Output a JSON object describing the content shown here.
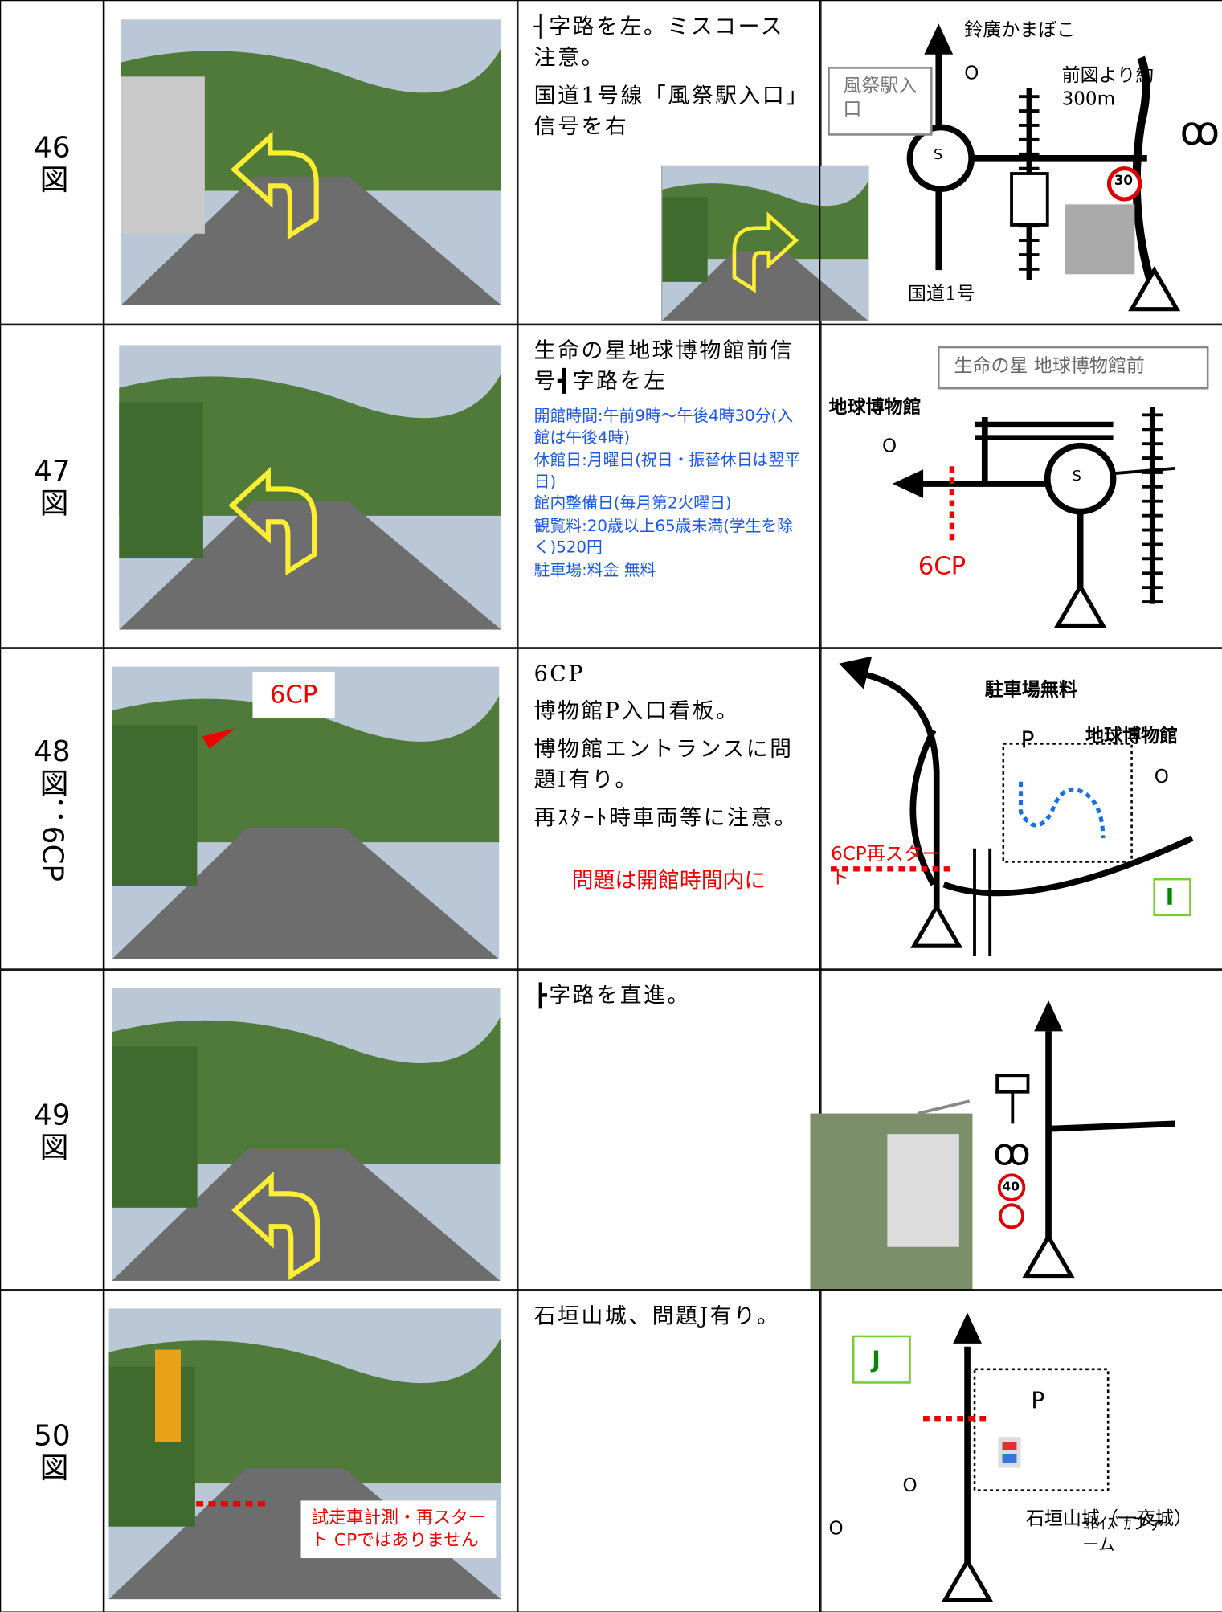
{
  "rows": [
    {
      "number": "46",
      "label": "図",
      "text": [
        "┤字路を左。ミスコース注意。",
        "国道1号線「風祭駅入口」信号を右"
      ],
      "map": [
        "鈴廣かまぼこ",
        "O",
        "風祭駅入口",
        "前図より約300m",
        "S",
        "30",
        "国道1号"
      ]
    },
    {
      "number": "47",
      "label": "図",
      "text": [
        "生命の星地球博物館前信号┫字路を左"
      ],
      "info": [
        "開館時間:午前9時～午後4時30分(入館は午後4時)",
        "休館日:月曜日(祝日・振替休日は翌平日)",
        "館内整備日(毎月第2火曜日)",
        "観覧料:20歳以上65歳未満(学生を除く)520円",
        "駐車場:料金 無料"
      ],
      "map": [
        "生命の星 地球博物館前",
        "地球博物館",
        "O",
        "S",
        "6CP"
      ]
    },
    {
      "number": "48",
      "label": "図：6CP",
      "photo_label": "6CP",
      "text": [
        "6CP",
        "博物館P入口看板。",
        "博物館エントランスに問題I有り。",
        "再ｽﾀｰﾄ時車両等に注意。"
      ],
      "note": "問題は開館時間内に",
      "map": [
        "駐車場無料",
        "P",
        "地球博物館",
        "O",
        "6CP再スタート",
        "I"
      ]
    },
    {
      "number": "49",
      "label": "図",
      "text": [
        "┣字路を直進。"
      ],
      "map": [
        "40"
      ]
    },
    {
      "number": "50",
      "label": "図",
      "photo_label": "試走車計測・再スタート CPではありません",
      "text": [
        "石垣山城、問題J有り。"
      ],
      "map": [
        "J",
        "P",
        "O",
        "石垣山城（一夜城）",
        "O",
        "ﾖﾛｲｽﾞｶファーム"
      ]
    }
  ]
}
